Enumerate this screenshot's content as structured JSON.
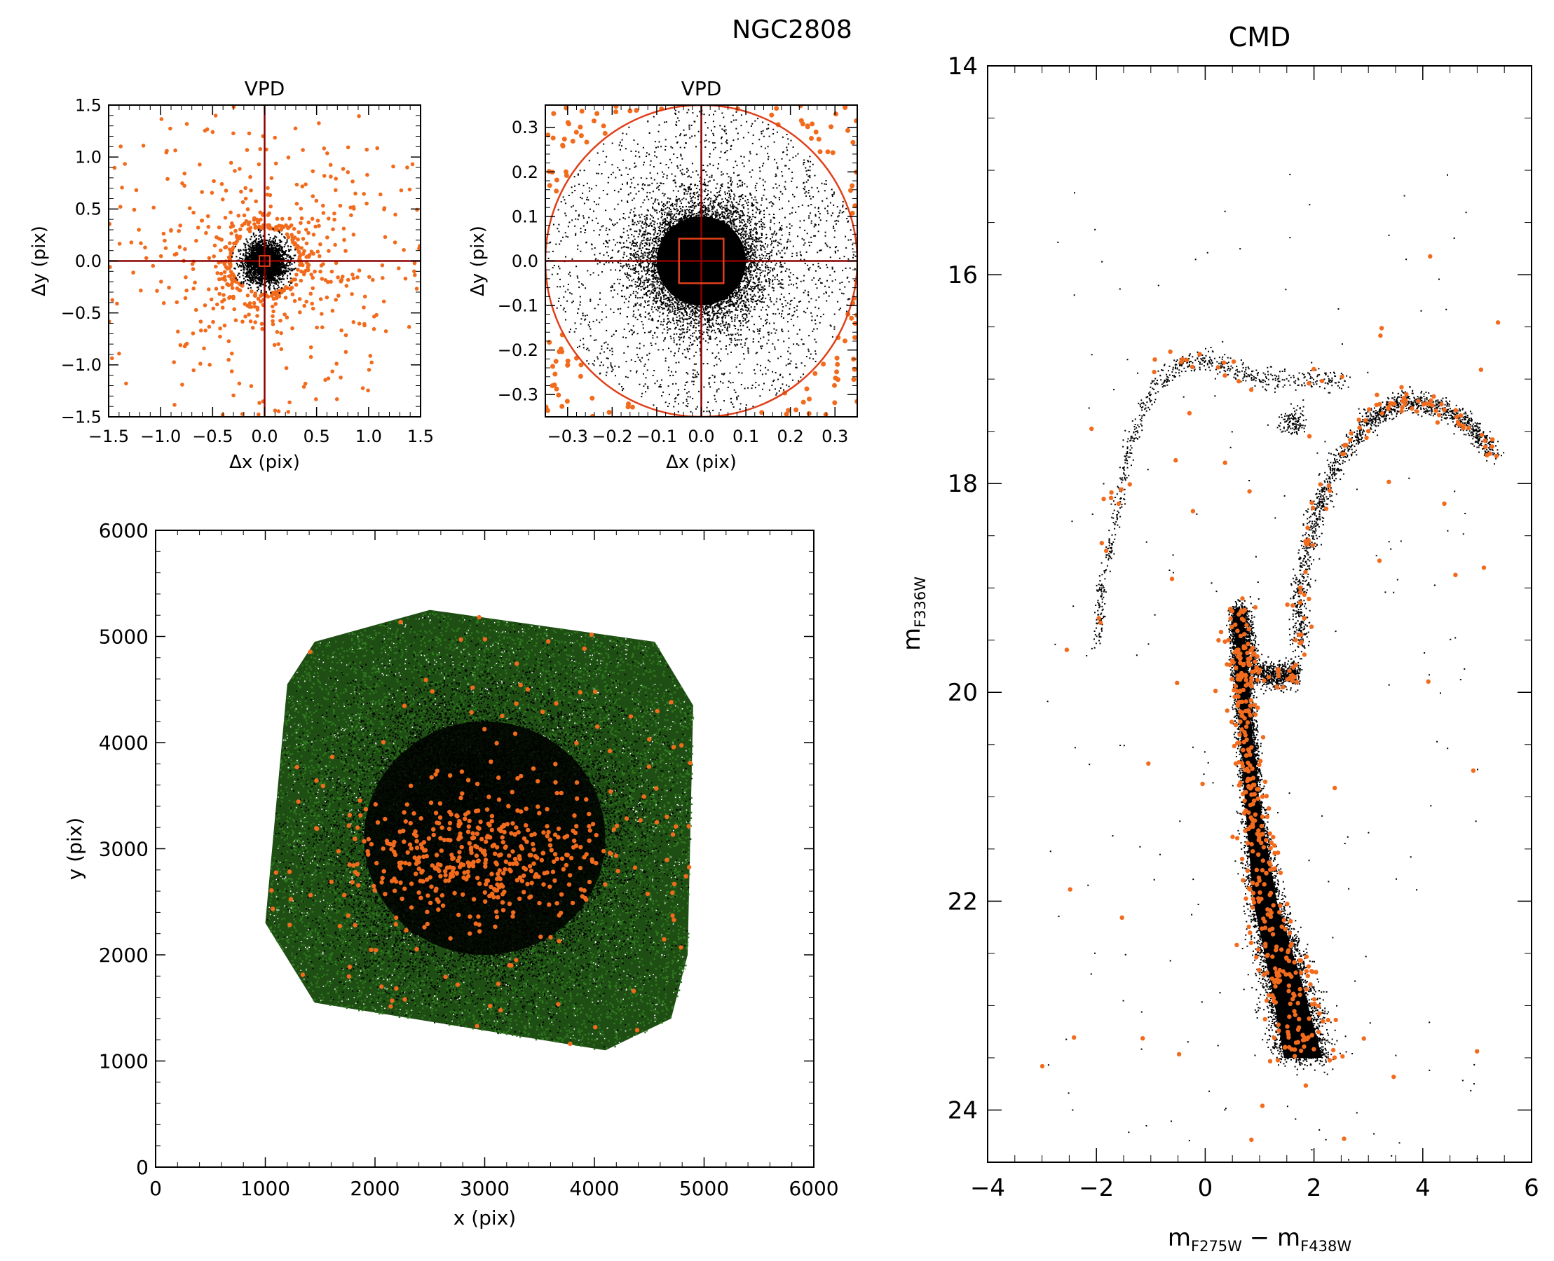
{
  "figure": {
    "title": "NGC2808",
    "colors": {
      "members": "#000000",
      "rejected": "#f26b1d",
      "axis": "#000000",
      "crosshair": "#8b0000",
      "selection": "#e0401a",
      "field": "#2f7a1f"
    }
  },
  "chart_data": [
    {
      "id": "vpd_full",
      "type": "scatter",
      "title": "VPD",
      "xlabel": "Δx (pix)",
      "ylabel": "Δy (pix)",
      "xlim": [
        -1.5,
        1.5
      ],
      "ylim": [
        -1.5,
        1.5
      ],
      "xticks": [
        -1.5,
        -1.0,
        -0.5,
        0.0,
        0.5,
        1.0,
        1.5
      ],
      "yticks": [
        -1.5,
        -1.0,
        -0.5,
        0.0,
        0.5,
        1.0,
        1.5
      ],
      "xtick_labels": [
        "−1.5",
        "−1.0",
        "−0.5",
        "0.0",
        "0.5",
        "1.0",
        "1.5"
      ],
      "ytick_labels": [
        "−1.5",
        "−1.0",
        "−0.5",
        "0.0",
        "0.5",
        "1.0",
        "1.5"
      ],
      "series": [
        {
          "role": "members",
          "distribution": "gaussian",
          "center": [
            0,
            0
          ],
          "sigma": 0.1,
          "clip_radius": 0.33
        },
        {
          "role": "rejected",
          "distribution": "radial-halo",
          "r_range": [
            0.33,
            1.5
          ]
        }
      ],
      "overlays": {
        "crosshair": [
          0,
          0
        ],
        "selection_circle_radius": 0.35,
        "zoom_box_halfwidth": 0.05
      }
    },
    {
      "id": "vpd_zoom",
      "type": "scatter",
      "title": "VPD",
      "xlabel": "Δx (pix)",
      "ylabel": "Δy (pix)",
      "xlim": [
        -0.35,
        0.35
      ],
      "ylim": [
        -0.35,
        0.35
      ],
      "xticks": [
        -0.3,
        -0.2,
        -0.1,
        0.0,
        0.1,
        0.2,
        0.3
      ],
      "yticks": [
        -0.3,
        -0.2,
        -0.1,
        0.0,
        0.1,
        0.2,
        0.3
      ],
      "xtick_labels": [
        "−0.3",
        "−0.2",
        "−0.1",
        "0.0",
        "0.1",
        "0.2",
        "0.3"
      ],
      "ytick_labels": [
        "−0.3",
        "−0.2",
        "−0.1",
        "0.0",
        "0.1",
        "0.2",
        "0.3"
      ],
      "series": [
        {
          "role": "members",
          "distribution": "gaussian",
          "center": [
            0,
            0
          ],
          "sigma": 0.07,
          "clip_radius": 0.345
        },
        {
          "role": "rejected",
          "distribution": "outside-circle",
          "r_min": 0.35
        }
      ],
      "overlays": {
        "crosshair": [
          0,
          0
        ],
        "selection_circle_radius": 0.35,
        "zoom_box_halfwidth": 0.05
      }
    },
    {
      "id": "xy_map",
      "type": "scatter",
      "xlabel": "x (pix)",
      "ylabel": "y (pix)",
      "xlim": [
        0,
        6000
      ],
      "ylim": [
        0,
        6000
      ],
      "xticks": [
        0,
        1000,
        2000,
        3000,
        4000,
        5000,
        6000
      ],
      "yticks": [
        0,
        1000,
        2000,
        3000,
        4000,
        5000,
        6000
      ],
      "xtick_labels": [
        "0",
        "1000",
        "2000",
        "3000",
        "4000",
        "5000",
        "6000"
      ],
      "ytick_labels": [
        "0",
        "1000",
        "2000",
        "3000",
        "4000",
        "5000",
        "6000"
      ],
      "footprint": [
        [
          1000,
          2300
        ],
        [
          1200,
          4550
        ],
        [
          1450,
          4950
        ],
        [
          2500,
          5250
        ],
        [
          4550,
          4950
        ],
        [
          4900,
          4350
        ],
        [
          4850,
          2000
        ],
        [
          4700,
          1400
        ],
        [
          4100,
          1100
        ],
        [
          1450,
          1550
        ]
      ],
      "series": [
        {
          "role": "field",
          "distribution": "uniform-in-footprint"
        },
        {
          "role": "members",
          "distribution": "gaussian",
          "center": [
            3000,
            3100
          ],
          "sigma": 700
        },
        {
          "role": "rejected",
          "distribution": "concentrated",
          "center": [
            2950,
            2950
          ],
          "sigma": 380,
          "extra": "sparse-uniform"
        }
      ]
    },
    {
      "id": "cmd",
      "type": "scatter",
      "title": "CMD",
      "xlabel": "m_F275W − m_F438W",
      "ylabel": "m_F336W",
      "xlim": [
        -4,
        6
      ],
      "ylim": [
        24.5,
        14
      ],
      "y_inverted": true,
      "xticks": [
        -4,
        -2,
        0,
        2,
        4,
        6
      ],
      "yticks": [
        14,
        16,
        18,
        20,
        22,
        24
      ],
      "xtick_labels": [
        "−4",
        "−2",
        "0",
        "2",
        "4",
        "6"
      ],
      "ytick_labels": [
        "14",
        "16",
        "18",
        "20",
        "22",
        "24"
      ],
      "series": [
        {
          "role": "members",
          "sequences": {
            "main_sequence": [
              [
                0.6,
                19.2
              ],
              [
                0.7,
                20.0
              ],
              [
                0.85,
                21.0
              ],
              [
                1.1,
                22.0
              ],
              [
                1.5,
                22.8
              ],
              [
                1.8,
                23.5
              ]
            ],
            "subgiant_branch": [
              [
                0.7,
                19.2
              ],
              [
                0.9,
                19.8
              ],
              [
                1.3,
                19.85
              ],
              [
                1.7,
                19.8
              ]
            ],
            "red_giant_branch": [
              [
                1.7,
                19.6
              ],
              [
                1.75,
                19.0
              ],
              [
                2.0,
                18.3
              ],
              [
                2.4,
                17.8
              ],
              [
                3.0,
                17.4
              ],
              [
                3.6,
                17.2
              ],
              [
                4.2,
                17.25
              ],
              [
                4.8,
                17.4
              ],
              [
                5.3,
                17.7
              ]
            ],
            "horizontal_branch": [
              [
                -2.0,
                19.5
              ],
              [
                -1.9,
                18.9
              ],
              [
                -1.6,
                18.2
              ],
              [
                -1.4,
                17.6
              ],
              [
                -1.0,
                17.1
              ],
              [
                -0.5,
                16.85
              ],
              [
                0.0,
                16.8
              ],
              [
                0.6,
                16.9
              ],
              [
                1.2,
                17.0
              ],
              [
                2.0,
                17.0
              ],
              [
                2.6,
                17.0
              ]
            ],
            "red_clump": [
              [
                1.6,
                17.4
              ]
            ]
          }
        },
        {
          "role": "rejected",
          "sequences": "follows-members-with-scatter"
        }
      ]
    }
  ]
}
